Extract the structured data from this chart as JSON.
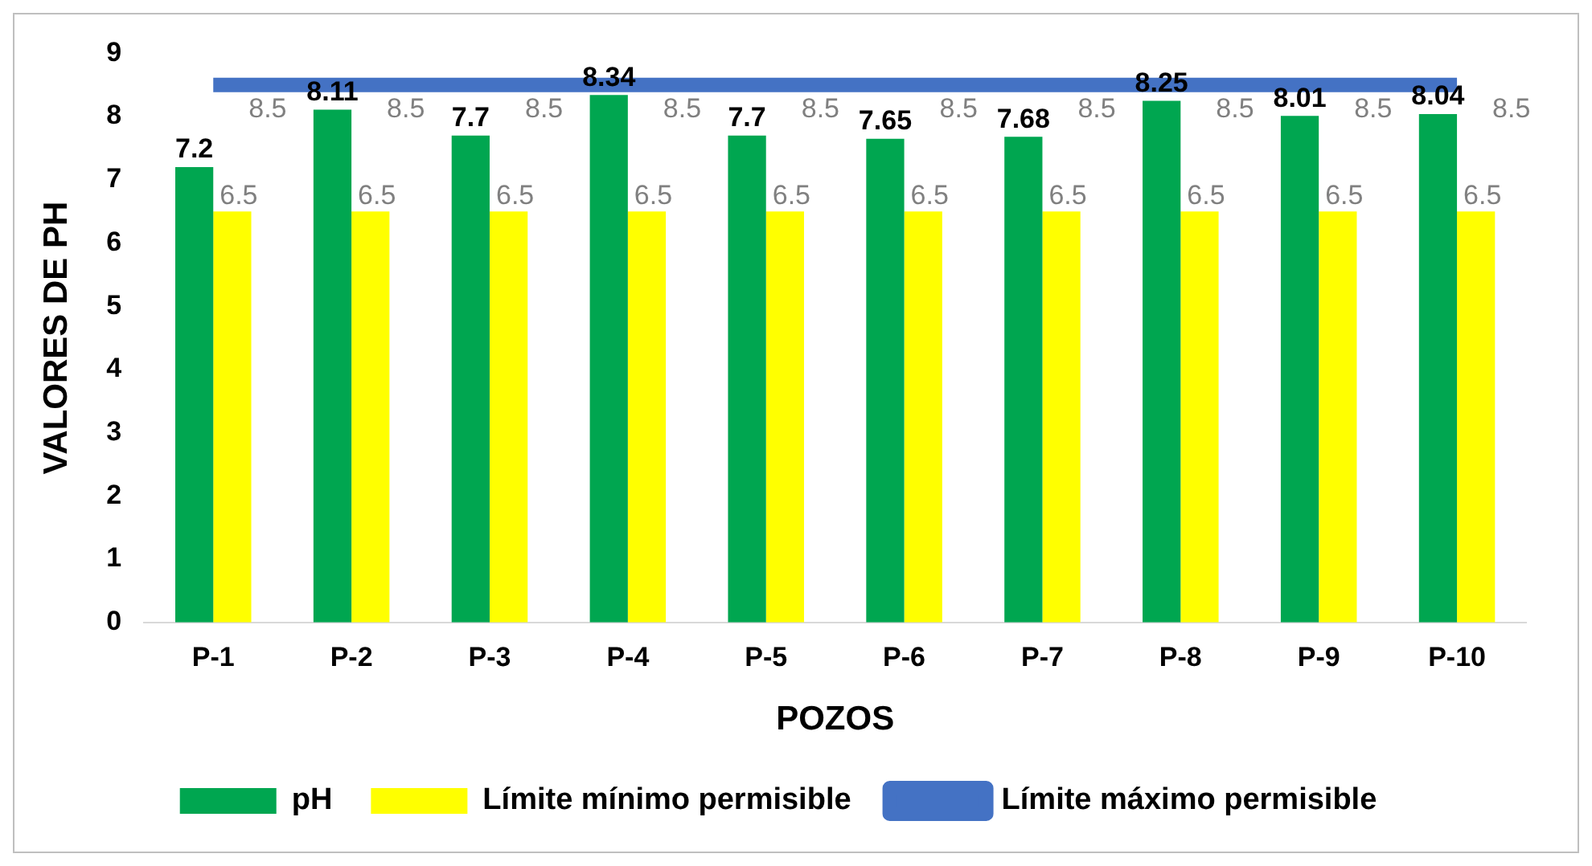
{
  "chart_data": {
    "type": "bar",
    "xlabel": "POZOS",
    "ylabel": "VALORES DE PH",
    "categories": [
      "P-1",
      "P-2",
      "P-3",
      "P-4",
      "P-5",
      "P-6",
      "P-7",
      "P-8",
      "P-9",
      "P-10"
    ],
    "series": [
      {
        "name": "pH",
        "color": "#00a650",
        "values": [
          7.2,
          8.11,
          7.7,
          8.34,
          7.7,
          7.65,
          7.68,
          8.25,
          8.01,
          8.04
        ]
      },
      {
        "name": "Límite mínimo permisible",
        "color": "#ffff00",
        "values": [
          6.5,
          6.5,
          6.5,
          6.5,
          6.5,
          6.5,
          6.5,
          6.5,
          6.5,
          6.5
        ]
      },
      {
        "name": "Límite máximo permisible",
        "type": "line",
        "color": "#4472c4",
        "values": [
          8.5,
          8.5,
          8.5,
          8.5,
          8.5,
          8.5,
          8.5,
          8.5,
          8.5,
          8.5
        ]
      }
    ],
    "ylim": [
      0,
      9
    ],
    "yticks": [
      0,
      1,
      2,
      3,
      4,
      5,
      6,
      7,
      8,
      9
    ],
    "grid": false,
    "legend": "bottom",
    "data_labels": true
  }
}
